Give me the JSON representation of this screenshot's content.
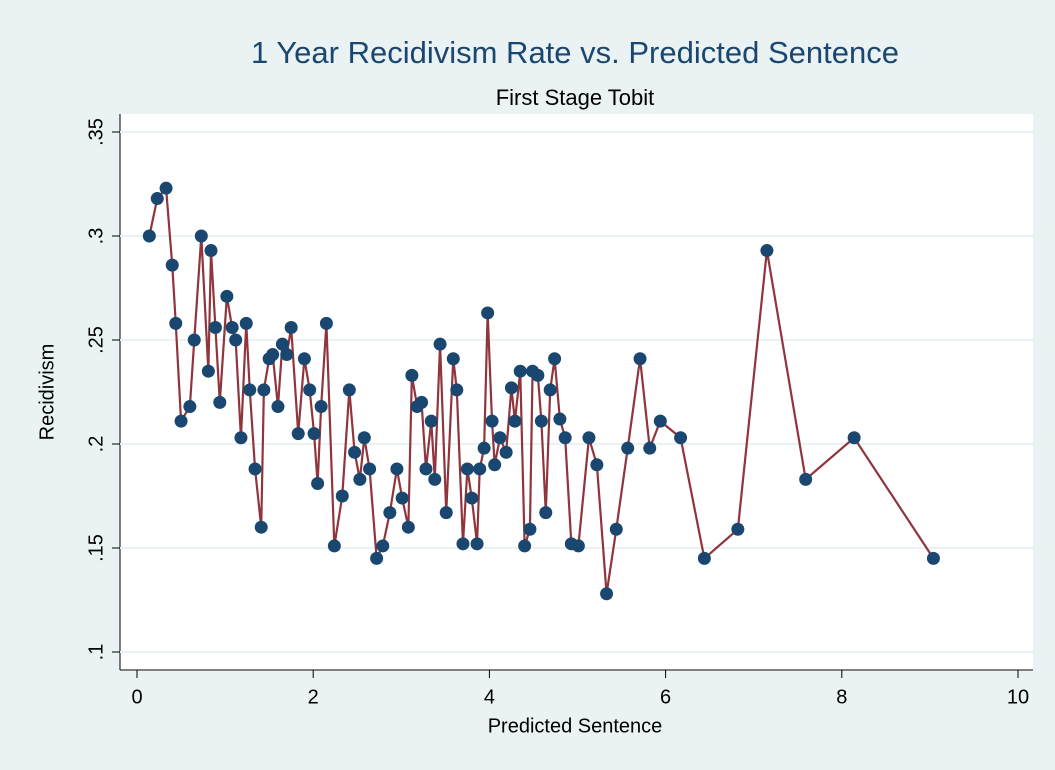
{
  "chart_data": {
    "type": "line",
    "title": "1 Year Recidivism Rate vs. Predicted Sentence",
    "subtitle": "First Stage Tobit",
    "xlabel": "Predicted Sentence",
    "ylabel": "Recidivism",
    "xlim": [
      0,
      10
    ],
    "xticks": [
      0,
      2,
      4,
      6,
      8,
      10
    ],
    "ylim": [
      0.1,
      0.35
    ],
    "yticks": [
      {
        "value": 0.1,
        "label": ".1"
      },
      {
        "value": 0.15,
        "label": ".15"
      },
      {
        "value": 0.2,
        "label": ".2"
      },
      {
        "value": 0.25,
        "label": ".25"
      },
      {
        "value": 0.3,
        "label": ".3"
      },
      {
        "value": 0.35,
        "label": ".35"
      }
    ],
    "grid": true,
    "series": [
      {
        "line_color": "#90353b",
        "marker_color": "#1a476f",
        "x": [
          0.14,
          0.23,
          0.33,
          0.4,
          0.44,
          0.5,
          0.6,
          0.65,
          0.73,
          0.81,
          0.84,
          0.89,
          0.94,
          1.02,
          1.08,
          1.12,
          1.18,
          1.24,
          1.28,
          1.34,
          1.41,
          1.44,
          1.5,
          1.54,
          1.6,
          1.65,
          1.7,
          1.75,
          1.83,
          1.9,
          1.96,
          2.01,
          2.05,
          2.09,
          2.15,
          2.24,
          2.33,
          2.41,
          2.47,
          2.53,
          2.58,
          2.64,
          2.72,
          2.79,
          2.87,
          2.95,
          3.01,
          3.08,
          3.12,
          3.18,
          3.23,
          3.28,
          3.34,
          3.38,
          3.44,
          3.51,
          3.59,
          3.63,
          3.7,
          3.75,
          3.8,
          3.86,
          3.89,
          3.94,
          3.98,
          4.03,
          4.06,
          4.12,
          4.19,
          4.25,
          4.29,
          4.35,
          4.4,
          4.46,
          4.49,
          4.55,
          4.59,
          4.64,
          4.69,
          4.74,
          4.8,
          4.86,
          4.93,
          5.01,
          5.13,
          5.22,
          5.33,
          5.44,
          5.57,
          5.71,
          5.82,
          5.94,
          6.17,
          6.44,
          6.82,
          7.15,
          7.59,
          8.14,
          9.04
        ],
        "values": [
          0.3,
          0.318,
          0.323,
          0.286,
          0.258,
          0.211,
          0.218,
          0.25,
          0.3,
          0.235,
          0.293,
          0.256,
          0.22,
          0.271,
          0.256,
          0.25,
          0.203,
          0.258,
          0.226,
          0.188,
          0.16,
          0.226,
          0.241,
          0.243,
          0.218,
          0.248,
          0.243,
          0.256,
          0.205,
          0.241,
          0.226,
          0.205,
          0.181,
          0.218,
          0.258,
          0.151,
          0.175,
          0.226,
          0.196,
          0.183,
          0.203,
          0.188,
          0.145,
          0.151,
          0.167,
          0.188,
          0.174,
          0.16,
          0.233,
          0.218,
          0.22,
          0.188,
          0.211,
          0.183,
          0.248,
          0.167,
          0.241,
          0.226,
          0.152,
          0.188,
          0.174,
          0.152,
          0.188,
          0.198,
          0.263,
          0.211,
          0.19,
          0.203,
          0.196,
          0.227,
          0.211,
          0.235,
          0.151,
          0.159,
          0.235,
          0.233,
          0.211,
          0.167,
          0.226,
          0.241,
          0.212,
          0.203,
          0.152,
          0.151,
          0.203,
          0.19,
          0.128,
          0.159,
          0.198,
          0.241,
          0.198,
          0.211,
          0.203,
          0.145,
          0.159,
          0.293,
          0.183,
          0.203,
          0.145
        ]
      }
    ]
  }
}
